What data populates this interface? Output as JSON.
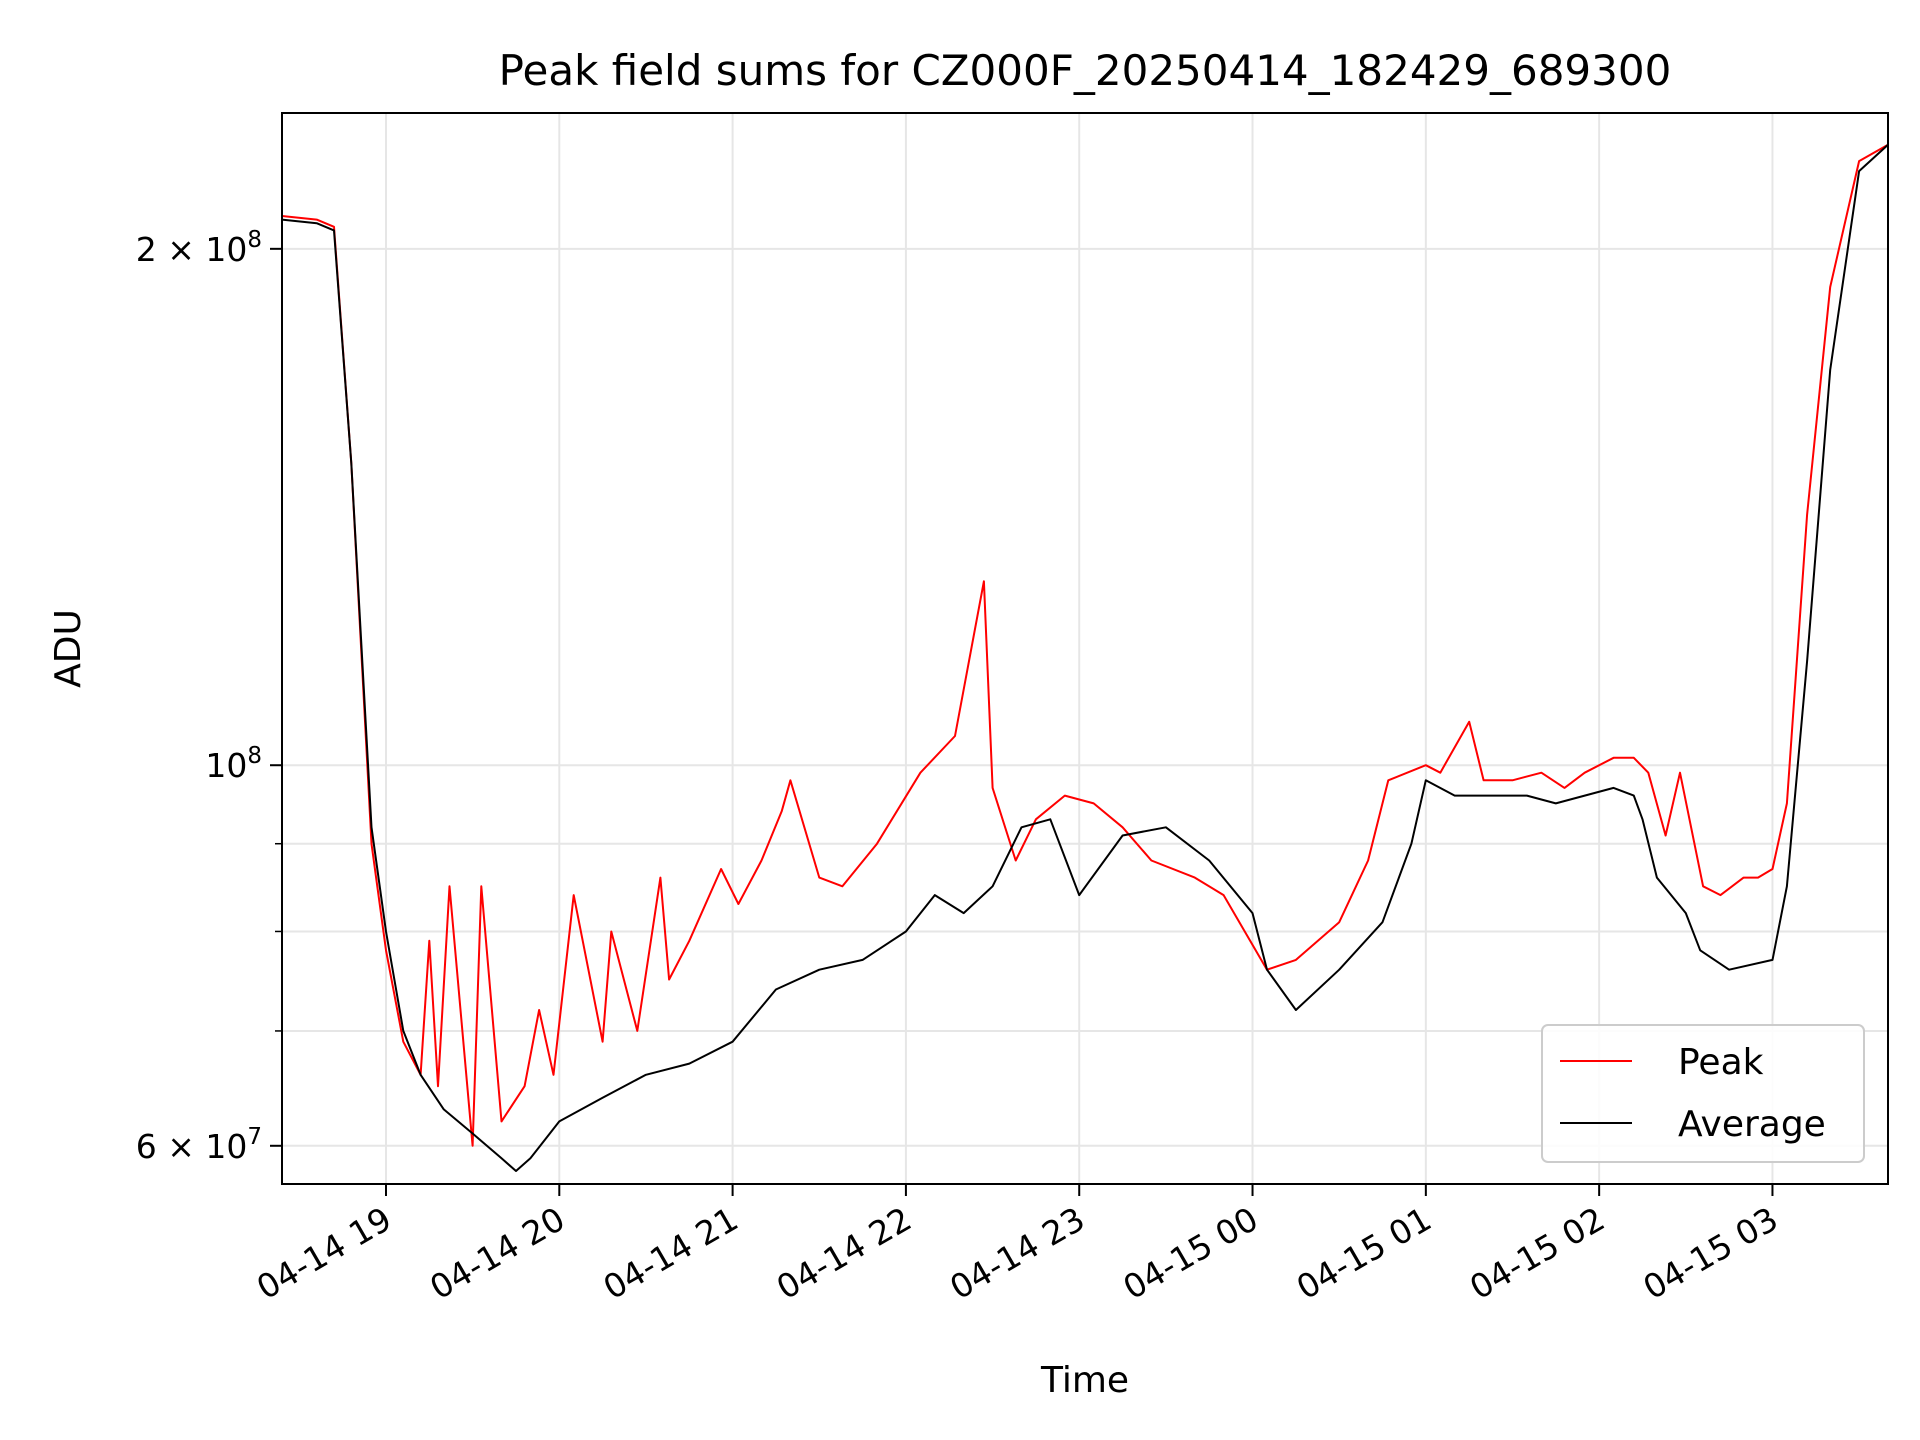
{
  "chart_data": {
    "type": "line",
    "title": "Peak field sums for CZ000F_20250414_182429_689300",
    "xlabel": "Time",
    "ylabel": "ADU",
    "yscale": "log",
    "xlim": [
      "2025-04-14 18:24",
      "2025-04-15 03:40"
    ],
    "ylim": [
      57000000,
      240000000
    ],
    "grid": true,
    "legend_position": "lower-right",
    "x_ticks": [
      {
        "value": "2025-04-14 19:00",
        "label": "04-14 19"
      },
      {
        "value": "2025-04-14 20:00",
        "label": "04-14 20"
      },
      {
        "value": "2025-04-14 21:00",
        "label": "04-14 21"
      },
      {
        "value": "2025-04-14 22:00",
        "label": "04-14 22"
      },
      {
        "value": "2025-04-14 23:00",
        "label": "04-14 23"
      },
      {
        "value": "2025-04-15 00:00",
        "label": "04-15 00"
      },
      {
        "value": "2025-04-15 01:00",
        "label": "04-15 01"
      },
      {
        "value": "2025-04-15 02:00",
        "label": "04-15 02"
      },
      {
        "value": "2025-04-15 03:00",
        "label": "04-15 03"
      }
    ],
    "y_ticks": [
      {
        "value": 60000000,
        "base": "6",
        "exp": "7"
      },
      {
        "value": 100000000,
        "base": "",
        "exp": "8"
      },
      {
        "value": 200000000,
        "base": "2",
        "exp": "8"
      }
    ],
    "y_minor_ticks": [
      70000000,
      80000000,
      90000000
    ],
    "series": [
      {
        "name": "Peak",
        "color": "#ff0000",
        "x": [
          "2025-04-14 18:24",
          "2025-04-14 18:36",
          "2025-04-14 18:42",
          "2025-04-14 18:48",
          "2025-04-14 18:55",
          "2025-04-14 19:00",
          "2025-04-14 19:06",
          "2025-04-14 19:12",
          "2025-04-14 19:15",
          "2025-04-14 19:18",
          "2025-04-14 19:22",
          "2025-04-14 19:30",
          "2025-04-14 19:33",
          "2025-04-14 19:40",
          "2025-04-14 19:48",
          "2025-04-14 19:53",
          "2025-04-14 19:58",
          "2025-04-14 20:05",
          "2025-04-14 20:15",
          "2025-04-14 20:18",
          "2025-04-14 20:27",
          "2025-04-14 20:35",
          "2025-04-14 20:38",
          "2025-04-14 20:45",
          "2025-04-14 20:56",
          "2025-04-14 21:02",
          "2025-04-14 21:10",
          "2025-04-14 21:17",
          "2025-04-14 21:20",
          "2025-04-14 21:30",
          "2025-04-14 21:38",
          "2025-04-14 21:50",
          "2025-04-14 22:05",
          "2025-04-14 22:17",
          "2025-04-14 22:27",
          "2025-04-14 22:30",
          "2025-04-14 22:38",
          "2025-04-14 22:45",
          "2025-04-14 22:55",
          "2025-04-14 23:05",
          "2025-04-14 23:15",
          "2025-04-14 23:25",
          "2025-04-14 23:40",
          "2025-04-14 23:50",
          "2025-04-15 00:05",
          "2025-04-15 00:15",
          "2025-04-15 00:30",
          "2025-04-15 00:40",
          "2025-04-15 00:47",
          "2025-04-15 01:00",
          "2025-04-15 01:05",
          "2025-04-15 01:15",
          "2025-04-15 01:20",
          "2025-04-15 01:30",
          "2025-04-15 01:40",
          "2025-04-15 01:48",
          "2025-04-15 01:55",
          "2025-04-15 02:05",
          "2025-04-15 02:12",
          "2025-04-15 02:17",
          "2025-04-15 02:23",
          "2025-04-15 02:28",
          "2025-04-15 02:36",
          "2025-04-15 02:42",
          "2025-04-15 02:50",
          "2025-04-15 02:55",
          "2025-04-15 03:00",
          "2025-04-15 03:05",
          "2025-04-15 03:12",
          "2025-04-15 03:20",
          "2025-04-15 03:30",
          "2025-04-15 03:40"
        ],
        "values": [
          209000000,
          208000000,
          206000000,
          150000000,
          90000000,
          78000000,
          69000000,
          66000000,
          79000000,
          65000000,
          85000000,
          60000000,
          85000000,
          62000000,
          65000000,
          72000000,
          66000000,
          84000000,
          69000000,
          80000000,
          70000000,
          86000000,
          75000000,
          79000000,
          87000000,
          83000000,
          88000000,
          94000000,
          98000000,
          86000000,
          85000000,
          90000000,
          99000000,
          104000000,
          128000000,
          97000000,
          88000000,
          93000000,
          96000000,
          95000000,
          92000000,
          88000000,
          86000000,
          84000000,
          76000000,
          77000000,
          81000000,
          88000000,
          98000000,
          100000000,
          99000000,
          106000000,
          98000000,
          98000000,
          99000000,
          97000000,
          99000000,
          101000000,
          101000000,
          99000000,
          91000000,
          99000000,
          85000000,
          84000000,
          86000000,
          86000000,
          87000000,
          95000000,
          140000000,
          190000000,
          225000000,
          230000000
        ]
      },
      {
        "name": "Average",
        "color": "#000000",
        "x": [
          "2025-04-14 18:24",
          "2025-04-14 18:36",
          "2025-04-14 18:42",
          "2025-04-14 18:48",
          "2025-04-14 18:55",
          "2025-04-14 19:00",
          "2025-04-14 19:06",
          "2025-04-14 19:12",
          "2025-04-14 19:20",
          "2025-04-14 19:30",
          "2025-04-14 19:40",
          "2025-04-14 19:45",
          "2025-04-14 19:50",
          "2025-04-14 20:00",
          "2025-04-14 20:15",
          "2025-04-14 20:30",
          "2025-04-14 20:45",
          "2025-04-14 21:00",
          "2025-04-14 21:15",
          "2025-04-14 21:30",
          "2025-04-14 21:45",
          "2025-04-14 22:00",
          "2025-04-14 22:10",
          "2025-04-14 22:20",
          "2025-04-14 22:30",
          "2025-04-14 22:40",
          "2025-04-14 22:50",
          "2025-04-14 23:00",
          "2025-04-14 23:15",
          "2025-04-14 23:30",
          "2025-04-14 23:45",
          "2025-04-15 00:00",
          "2025-04-15 00:05",
          "2025-04-15 00:15",
          "2025-04-15 00:30",
          "2025-04-15 00:45",
          "2025-04-15 00:55",
          "2025-04-15 01:00",
          "2025-04-15 01:10",
          "2025-04-15 01:20",
          "2025-04-15 01:35",
          "2025-04-15 01:45",
          "2025-04-15 01:55",
          "2025-04-15 02:05",
          "2025-04-15 02:12",
          "2025-04-15 02:15",
          "2025-04-15 02:20",
          "2025-04-15 02:30",
          "2025-04-15 02:35",
          "2025-04-15 02:45",
          "2025-04-15 03:00",
          "2025-04-15 03:05",
          "2025-04-15 03:12",
          "2025-04-15 03:20",
          "2025-04-15 03:30",
          "2025-04-15 03:40"
        ],
        "values": [
          208000000,
          207000000,
          205000000,
          150000000,
          92000000,
          80000000,
          70000000,
          66000000,
          63000000,
          61000000,
          59000000,
          58000000,
          59000000,
          62000000,
          64000000,
          66000000,
          67000000,
          69000000,
          74000000,
          76000000,
          77000000,
          80000000,
          84000000,
          82000000,
          85000000,
          92000000,
          93000000,
          84000000,
          91000000,
          92000000,
          88000000,
          82000000,
          76000000,
          72000000,
          76000000,
          81000000,
          90000000,
          98000000,
          96000000,
          96000000,
          96000000,
          95000000,
          96000000,
          97000000,
          96000000,
          93000000,
          86000000,
          82000000,
          78000000,
          76000000,
          77000000,
          85000000,
          115000000,
          170000000,
          222000000,
          230000000
        ]
      }
    ]
  }
}
